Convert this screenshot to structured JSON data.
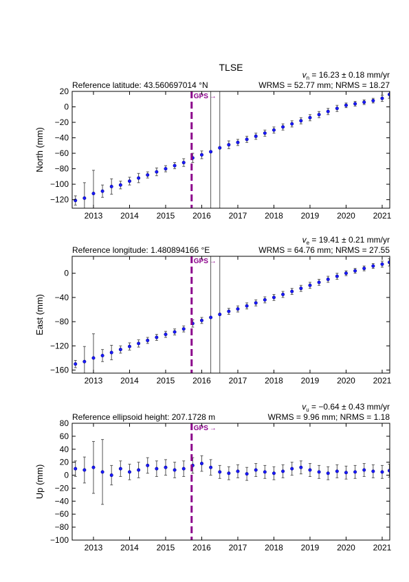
{
  "chart_data": [
    {
      "type": "scatter",
      "title": "TLSE",
      "ylabel": "North (mm)",
      "velocity": {
        "symbol": "v",
        "sub": "n",
        "text": " = 16.23 ± 0.18 mm/yr"
      },
      "reference": "Reference latitude: 43.560697014 °N",
      "stats": "WRMS = 52.77 mm; NRMS = 18.27",
      "event": {
        "x": 2015.72,
        "label": "GPS",
        "color": "#8b008b"
      },
      "color": "#1a1aff",
      "error_color": "#555555",
      "xlim": [
        2012.41,
        2021.21
      ],
      "xticks": [
        2013,
        2014,
        2015,
        2016,
        2017,
        2018,
        2019,
        2020,
        2021
      ],
      "ylim": [
        -131,
        20
      ],
      "yticks": [
        {
          "value": -120,
          "label": "−120"
        },
        {
          "value": -100,
          "label": "−100"
        },
        {
          "value": -80,
          "label": "−80"
        },
        {
          "value": -60,
          "label": "−60"
        },
        {
          "value": -40,
          "label": "−40"
        },
        {
          "value": -20,
          "label": "−20"
        },
        0,
        20
      ],
      "x": [
        2012.5,
        2012.75,
        2013.0,
        2013.25,
        2013.5,
        2013.75,
        2014.0,
        2014.25,
        2014.5,
        2014.75,
        2015.0,
        2015.25,
        2015.5,
        2015.75,
        2016.0,
        2016.25,
        2016.5,
        2016.75,
        2017.0,
        2017.25,
        2017.5,
        2017.75,
        2018.0,
        2018.25,
        2018.5,
        2018.75,
        2019.0,
        2019.25,
        2019.5,
        2019.75,
        2020.0,
        2020.25,
        2020.5,
        2020.75,
        2021.0,
        2021.2
      ],
      "values": [
        -121,
        -118,
        -112,
        -109,
        -103,
        -101,
        -96,
        -92,
        -88,
        -84,
        -80,
        -76,
        -72,
        -66,
        -62,
        -58,
        -53,
        -49,
        -46,
        -42,
        -38,
        -34,
        -30,
        -26,
        -22,
        -18,
        -14,
        -10,
        -6,
        -2,
        2,
        4,
        6,
        8,
        11,
        16
      ],
      "errors": [
        6,
        20,
        30,
        8,
        10,
        5,
        5,
        6,
        4,
        5,
        4,
        4,
        5,
        6,
        5,
        90,
        90,
        5,
        4,
        4,
        4,
        4,
        4,
        4,
        4,
        4,
        4,
        4,
        4,
        4,
        3,
        3,
        3,
        3,
        4,
        5
      ]
    },
    {
      "type": "scatter",
      "ylabel": "East (mm)",
      "velocity": {
        "symbol": "v",
        "sub": "e",
        "text": " = 19.41 ± 0.21 mm/yr"
      },
      "reference": "Reference longitude: 1.480894166 °E",
      "stats": "WRMS = 64.76 mm; NRMS = 27.55",
      "event": {
        "x": 2015.72,
        "label": "GPS",
        "color": "#8b008b"
      },
      "color": "#1a1aff",
      "error_color": "#555555",
      "xlim": [
        2012.41,
        2021.21
      ],
      "xticks": [
        2013,
        2014,
        2015,
        2016,
        2017,
        2018,
        2019,
        2020,
        2021
      ],
      "ylim": [
        -165,
        28
      ],
      "yticks": [
        {
          "value": -160,
          "label": "−160"
        },
        {
          "value": -120,
          "label": "−120"
        },
        {
          "value": -80,
          "label": "−80"
        },
        {
          "value": -40,
          "label": "−40"
        },
        0
      ],
      "x": [
        2012.5,
        2012.75,
        2013.0,
        2013.25,
        2013.5,
        2013.75,
        2014.0,
        2014.25,
        2014.5,
        2014.75,
        2015.0,
        2015.25,
        2015.5,
        2015.75,
        2016.0,
        2016.25,
        2016.5,
        2016.75,
        2017.0,
        2017.25,
        2017.5,
        2017.75,
        2018.0,
        2018.25,
        2018.5,
        2018.75,
        2019.0,
        2019.25,
        2019.5,
        2019.75,
        2020.0,
        2020.25,
        2020.5,
        2020.75,
        2021.0,
        2021.2
      ],
      "values": [
        -150,
        -146,
        -140,
        -136,
        -131,
        -126,
        -121,
        -116,
        -111,
        -106,
        -101,
        -97,
        -92,
        -83,
        -78,
        -73,
        -68,
        -63,
        -59,
        -54,
        -49,
        -44,
        -40,
        -35,
        -30,
        -25,
        -20,
        -15,
        -10,
        -5,
        0,
        4,
        8,
        12,
        15,
        18
      ],
      "errors": [
        6,
        25,
        40,
        10,
        12,
        6,
        6,
        6,
        5,
        5,
        5,
        5,
        5,
        6,
        5,
        110,
        110,
        5,
        5,
        5,
        5,
        5,
        5,
        5,
        5,
        5,
        5,
        5,
        5,
        5,
        4,
        4,
        4,
        4,
        5,
        6
      ]
    },
    {
      "type": "scatter",
      "ylabel": "Up (mm)",
      "velocity": {
        "symbol": "v",
        "sub": "u",
        "text": " = −0.64 ± 0.43 mm/yr"
      },
      "reference": "Reference ellipsoid height: 207.1728 m",
      "stats": "WRMS = 9.96 mm; NRMS = 1.18",
      "event": {
        "x": 2015.72,
        "label": "GPS",
        "color": "#8b008b"
      },
      "color": "#1a1aff",
      "error_color": "#555555",
      "xlim": [
        2012.41,
        2021.21
      ],
      "xticks": [
        2013,
        2014,
        2015,
        2016,
        2017,
        2018,
        2019,
        2020,
        2021
      ],
      "ylim": [
        -100,
        80
      ],
      "yticks": [
        {
          "value": -100,
          "label": "−100"
        },
        {
          "value": -80,
          "label": "−80"
        },
        {
          "value": -60,
          "label": "−60"
        },
        {
          "value": -40,
          "label": "−40"
        },
        {
          "value": -20,
          "label": "−20"
        },
        0,
        20,
        40,
        60,
        80
      ],
      "x": [
        2012.5,
        2012.75,
        2013.0,
        2013.25,
        2013.5,
        2013.75,
        2014.0,
        2014.25,
        2014.5,
        2014.75,
        2015.0,
        2015.25,
        2015.5,
        2015.75,
        2016.0,
        2016.25,
        2016.5,
        2016.75,
        2017.0,
        2017.25,
        2017.5,
        2017.75,
        2018.0,
        2018.25,
        2018.5,
        2018.75,
        2019.0,
        2019.25,
        2019.5,
        2019.75,
        2020.0,
        2020.25,
        2020.5,
        2020.75,
        2021.0,
        2021.2
      ],
      "values": [
        10,
        8,
        12,
        5,
        0,
        10,
        5,
        8,
        15,
        10,
        12,
        8,
        10,
        15,
        18,
        12,
        5,
        3,
        6,
        2,
        8,
        5,
        3,
        6,
        10,
        12,
        8,
        5,
        3,
        6,
        4,
        5,
        8,
        6,
        5,
        7
      ],
      "errors": [
        12,
        20,
        40,
        50,
        15,
        12,
        12,
        12,
        12,
        12,
        12,
        12,
        12,
        12,
        12,
        12,
        10,
        10,
        10,
        10,
        10,
        10,
        10,
        10,
        10,
        10,
        10,
        10,
        10,
        10,
        10,
        10,
        10,
        10,
        10,
        10
      ]
    }
  ]
}
